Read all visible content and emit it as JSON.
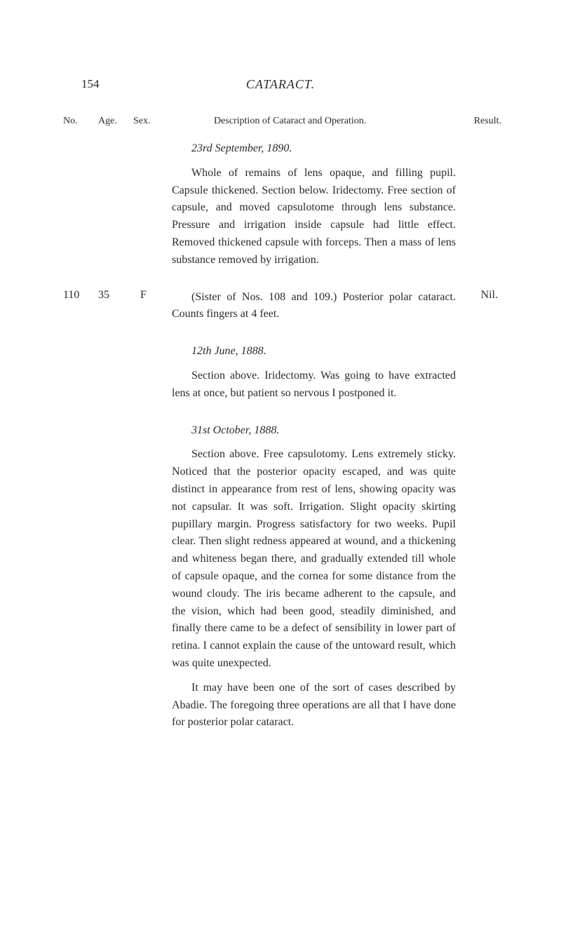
{
  "page": {
    "number": "154",
    "title": "CATARACT."
  },
  "columns": {
    "no": "No.",
    "age": "Age.",
    "sex": "Sex.",
    "description": "Description of Cataract and Operation.",
    "result": "Result."
  },
  "entries": [
    {
      "date": "23rd September, 1890.",
      "paragraph": "Whole of remains of lens opaque, and filling pupil. Capsule thickened. Section below. Iridectomy. Free section of capsule, and moved capsulotome through lens substance. Pressure and irrigation inside capsule had little effect. Removed thickened capsule with forceps. Then a mass of lens substance removed by irrigation."
    },
    {
      "no": "110",
      "age": "35",
      "sex": "F",
      "result": "Nil.",
      "paragraph": "(Sister of Nos. 108 and 109.) Posterior polar cataract. Counts fingers at 4 feet."
    },
    {
      "date": "12th June, 1888.",
      "paragraph": "Section above. Iridectomy. Was going to have extracted lens at once, but patient so nervous I postponed it."
    },
    {
      "date": "31st October, 1888.",
      "paragraph1": "Section above. Free capsulotomy. Lens extremely sticky. Noticed that the posterior opacity escaped, and was quite distinct in appearance from rest of lens, showing opacity was not capsular. It was soft. Irrigation. Slight opacity skirting pupillary margin. Progress satisfactory for two weeks. Pupil clear. Then slight redness appeared at wound, and a thickening and whiteness began there, and gradually extended till whole of capsule opaque, and the cornea for some distance from the wound cloudy. The iris became adherent to the capsule, and the vision, which had been good, steadily diminished, and finally there came to be a defect of sensibility in lower part of retina. I cannot explain the cause of the untoward result, which was quite unexpected.",
      "paragraph2": "It may have been one of the sort of cases described by Abadie. The foregoing three operations are all that I have done for posterior polar cataract."
    }
  ]
}
